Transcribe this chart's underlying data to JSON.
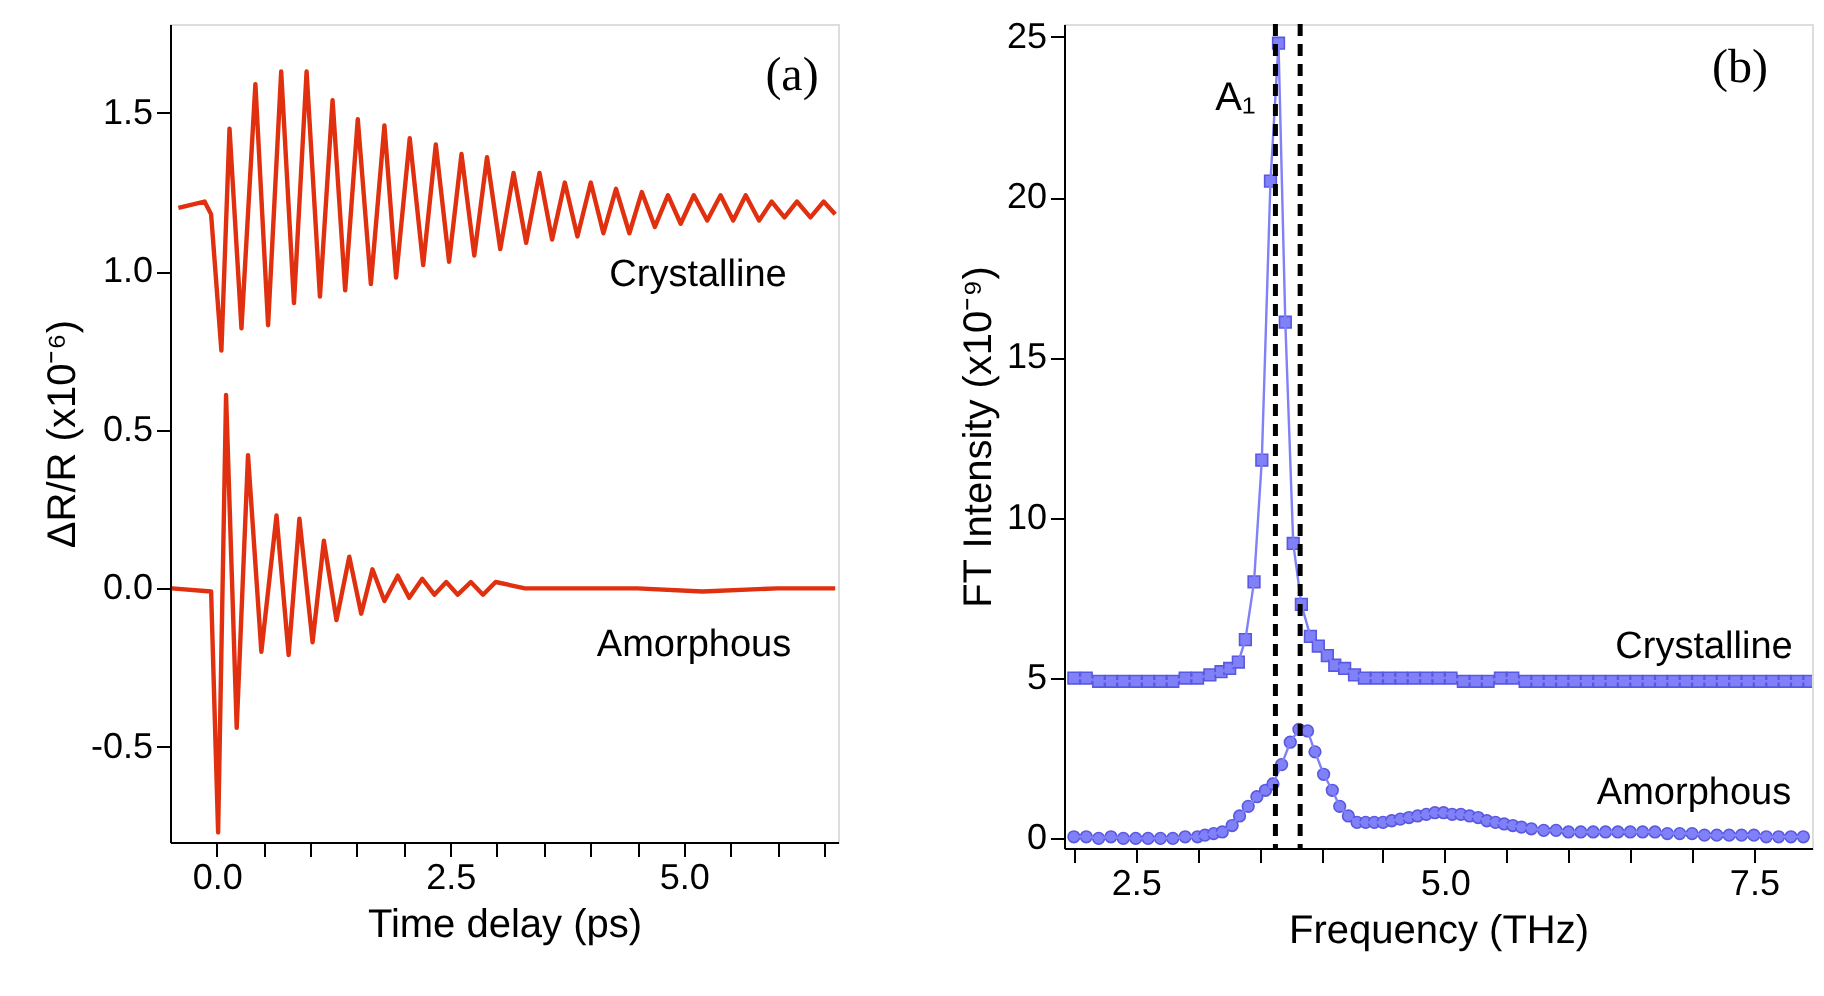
{
  "chart_data": [
    {
      "type": "line",
      "xlabel": "Time delay (ps)",
      "ylabel": "ΔR/R (x10⁻⁶)",
      "annotations": [
        "(a)"
      ],
      "xlim": [
        -0.5,
        6.65
      ],
      "ylim": [
        -0.8,
        1.78
      ],
      "xticks": [
        {
          "value": 0,
          "label": "0.0"
        },
        {
          "value": 0.5,
          "label": null
        },
        {
          "value": 1,
          "label": null
        },
        {
          "value": 1.5,
          "label": null
        },
        {
          "value": 2,
          "label": null
        },
        {
          "value": 2.5,
          "label": "2.5"
        },
        {
          "value": 3,
          "label": null
        },
        {
          "value": 3.5,
          "label": null
        },
        {
          "value": 4,
          "label": null
        },
        {
          "value": 4.5,
          "label": null
        },
        {
          "value": 5,
          "label": "5.0"
        },
        {
          "value": 5.5,
          "label": null
        },
        {
          "value": 6,
          "label": null
        },
        {
          "value": 6.5,
          "label": null
        }
      ],
      "yticks": [
        {
          "value": -0.5,
          "label": "-0.5"
        },
        {
          "value": 0,
          "label": "0.0"
        },
        {
          "value": 0.5,
          "label": "0.5"
        },
        {
          "value": 1,
          "label": "1.0"
        },
        {
          "value": 1.5,
          "label": "1.5"
        }
      ],
      "grid": false,
      "legend": false,
      "marker": "none",
      "line_style": "solid",
      "series": [
        {
          "name": "Crystalline",
          "color": "#e0300f",
          "x": [
            -0.41,
            -0.13,
            -0.06,
            0.05,
            0.137,
            0.265,
            0.414,
            0.55,
            0.69,
            0.827,
            0.962,
            1.105,
            1.24,
            1.375,
            1.51,
            1.65,
            1.795,
            1.92,
            2.066,
            2.21,
            2.345,
            2.487,
            2.62,
            2.757,
            2.893,
            3.035,
            3.177,
            3.312,
            3.455,
            3.59,
            3.726,
            3.861,
            4.004,
            4.139,
            4.274,
            4.417,
            4.55,
            4.69,
            4.83,
            4.966,
            5.107,
            5.25,
            5.393,
            5.528,
            5.662,
            5.805,
            5.94,
            6.077,
            6.21,
            6.355,
            6.496,
            6.62
          ],
          "values": [
            1.2,
            1.22,
            1.18,
            0.75,
            1.45,
            0.82,
            1.59,
            0.83,
            1.63,
            0.9,
            1.63,
            0.92,
            1.54,
            0.94,
            1.48,
            0.96,
            1.46,
            0.98,
            1.42,
            1.02,
            1.4,
            1.03,
            1.37,
            1.05,
            1.36,
            1.07,
            1.31,
            1.09,
            1.31,
            1.1,
            1.28,
            1.11,
            1.28,
            1.12,
            1.26,
            1.12,
            1.25,
            1.14,
            1.24,
            1.15,
            1.24,
            1.16,
            1.24,
            1.16,
            1.24,
            1.16,
            1.22,
            1.17,
            1.22,
            1.17,
            1.22,
            1.18
          ]
        },
        {
          "name": "Amorphous",
          "color": "#e0300f",
          "x": [
            -0.48,
            -0.06,
            0.015,
            0.1,
            0.214,
            0.335,
            0.478,
            0.64,
            0.77,
            0.885,
            1.026,
            1.147,
            1.282,
            1.419,
            1.547,
            1.667,
            1.795,
            1.938,
            2.06,
            2.2,
            2.33,
            2.457,
            2.58,
            2.72,
            2.85,
            2.985,
            3.3,
            3.8,
            4.5,
            5.2,
            6.0,
            6.62
          ],
          "values": [
            0.0,
            -0.01,
            -0.77,
            0.61,
            -0.44,
            0.42,
            -0.2,
            0.23,
            -0.21,
            0.22,
            -0.17,
            0.15,
            -0.1,
            0.1,
            -0.08,
            0.06,
            -0.04,
            0.04,
            -0.03,
            0.03,
            -0.02,
            0.02,
            -0.02,
            0.02,
            -0.02,
            0.02,
            0.0,
            0.0,
            0.0,
            -0.01,
            0.0,
            0.0
          ]
        }
      ]
    },
    {
      "type": "line",
      "xlabel": "Frequency (THz)",
      "ylabel": "FT Intensity (x10⁻⁹)",
      "annotations": [
        "(b)"
      ],
      "xlim": [
        1.92,
        7.97
      ],
      "ylim": [
        -0.3,
        25.4
      ],
      "xticks": [
        {
          "value": 2,
          "label": null
        },
        {
          "value": 2.5,
          "label": "2.5"
        },
        {
          "value": 3,
          "label": null
        },
        {
          "value": 3.5,
          "label": null
        },
        {
          "value": 4,
          "label": null
        },
        {
          "value": 4.5,
          "label": null
        },
        {
          "value": 5,
          "label": "5.0"
        },
        {
          "value": 5.5,
          "label": null
        },
        {
          "value": 6,
          "label": null
        },
        {
          "value": 6.5,
          "label": null
        },
        {
          "value": 7,
          "label": null
        },
        {
          "value": 7.5,
          "label": "7.5"
        }
      ],
      "yticks": [
        0,
        5,
        10,
        15,
        20,
        25
      ],
      "grid": false,
      "legend": false,
      "line_style": "solid",
      "ref_lines": [
        {
          "axis": "x",
          "value": 3.63,
          "label": "A₁",
          "color": "#000000",
          "line_style": "dashed"
        },
        {
          "axis": "x",
          "value": 3.83,
          "label": null,
          "color": "#000000",
          "line_style": "dashed"
        }
      ],
      "series": [
        {
          "name": "Crystalline",
          "color": "#8080f8",
          "marker": "square",
          "x": [
            2.0,
            2.1,
            2.2,
            2.3,
            2.4,
            2.5,
            2.6,
            2.7,
            2.8,
            2.9,
            3.0,
            3.1,
            3.19,
            3.26,
            3.33,
            3.387,
            3.457,
            3.52,
            3.59,
            3.655,
            3.71,
            3.774,
            3.84,
            3.913,
            3.977,
            4.05,
            4.11,
            4.19,
            4.27,
            4.35,
            4.45,
            4.55,
            4.65,
            4.75,
            4.85,
            4.95,
            5.05,
            5.15,
            5.25,
            5.35,
            5.45,
            5.55,
            5.65,
            5.75,
            5.85,
            5.95,
            6.05,
            6.15,
            6.25,
            6.35,
            6.45,
            6.55,
            6.65,
            6.75,
            6.85,
            6.95,
            7.05,
            7.15,
            7.25,
            7.35,
            7.45,
            7.55,
            7.65,
            7.75,
            7.85,
            7.95
          ],
          "values": [
            5.0,
            5.0,
            4.9,
            4.9,
            4.9,
            4.9,
            4.9,
            4.9,
            4.9,
            5.0,
            5.0,
            5.1,
            5.2,
            5.3,
            5.5,
            6.2,
            8.0,
            11.8,
            20.5,
            24.8,
            16.1,
            9.2,
            7.3,
            6.3,
            6.0,
            5.7,
            5.4,
            5.3,
            5.1,
            5.0,
            5.0,
            5.0,
            5.0,
            5.0,
            5.0,
            5.0,
            5.0,
            4.9,
            4.9,
            4.9,
            5.0,
            5.0,
            4.9,
            4.9,
            4.9,
            4.9,
            4.9,
            4.9,
            4.9,
            4.9,
            4.9,
            4.9,
            4.9,
            4.9,
            4.9,
            4.9,
            4.9,
            4.9,
            4.9,
            4.9,
            4.9,
            4.9,
            4.9,
            4.9,
            4.9,
            4.9
          ]
        },
        {
          "name": "Amorphous",
          "color": "#8080f8",
          "marker": "circle",
          "x": [
            2.0,
            2.1,
            2.2,
            2.3,
            2.4,
            2.5,
            2.6,
            2.7,
            2.8,
            2.9,
            3.0,
            3.06,
            3.13,
            3.2,
            3.28,
            3.34,
            3.41,
            3.48,
            3.55,
            3.61,
            3.68,
            3.75,
            3.82,
            3.89,
            3.95,
            4.02,
            4.09,
            4.15,
            4.22,
            4.29,
            4.36,
            4.43,
            4.5,
            4.57,
            4.64,
            4.71,
            4.78,
            4.85,
            4.92,
            4.99,
            5.06,
            5.13,
            5.2,
            5.27,
            5.34,
            5.41,
            5.48,
            5.55,
            5.62,
            5.7,
            5.8,
            5.9,
            6.0,
            6.1,
            6.2,
            6.3,
            6.4,
            6.5,
            6.6,
            6.7,
            6.8,
            6.9,
            7.0,
            7.1,
            7.2,
            7.3,
            7.4,
            7.5,
            7.6,
            7.7,
            7.8,
            7.9
          ],
          "values": [
            0.05,
            0.05,
            0.0,
            0.05,
            0.0,
            0.0,
            0.0,
            0.0,
            0.0,
            0.05,
            0.05,
            0.1,
            0.15,
            0.2,
            0.4,
            0.7,
            1.0,
            1.3,
            1.5,
            1.7,
            2.3,
            3.0,
            3.4,
            3.35,
            2.7,
            2.0,
            1.5,
            1.0,
            0.7,
            0.5,
            0.5,
            0.5,
            0.5,
            0.55,
            0.6,
            0.65,
            0.7,
            0.75,
            0.8,
            0.8,
            0.75,
            0.75,
            0.7,
            0.65,
            0.55,
            0.5,
            0.45,
            0.4,
            0.35,
            0.3,
            0.25,
            0.25,
            0.2,
            0.2,
            0.2,
            0.2,
            0.2,
            0.2,
            0.2,
            0.2,
            0.15,
            0.15,
            0.15,
            0.1,
            0.1,
            0.1,
            0.1,
            0.1,
            0.05,
            0.05,
            0.05,
            0.05
          ]
        }
      ]
    }
  ]
}
